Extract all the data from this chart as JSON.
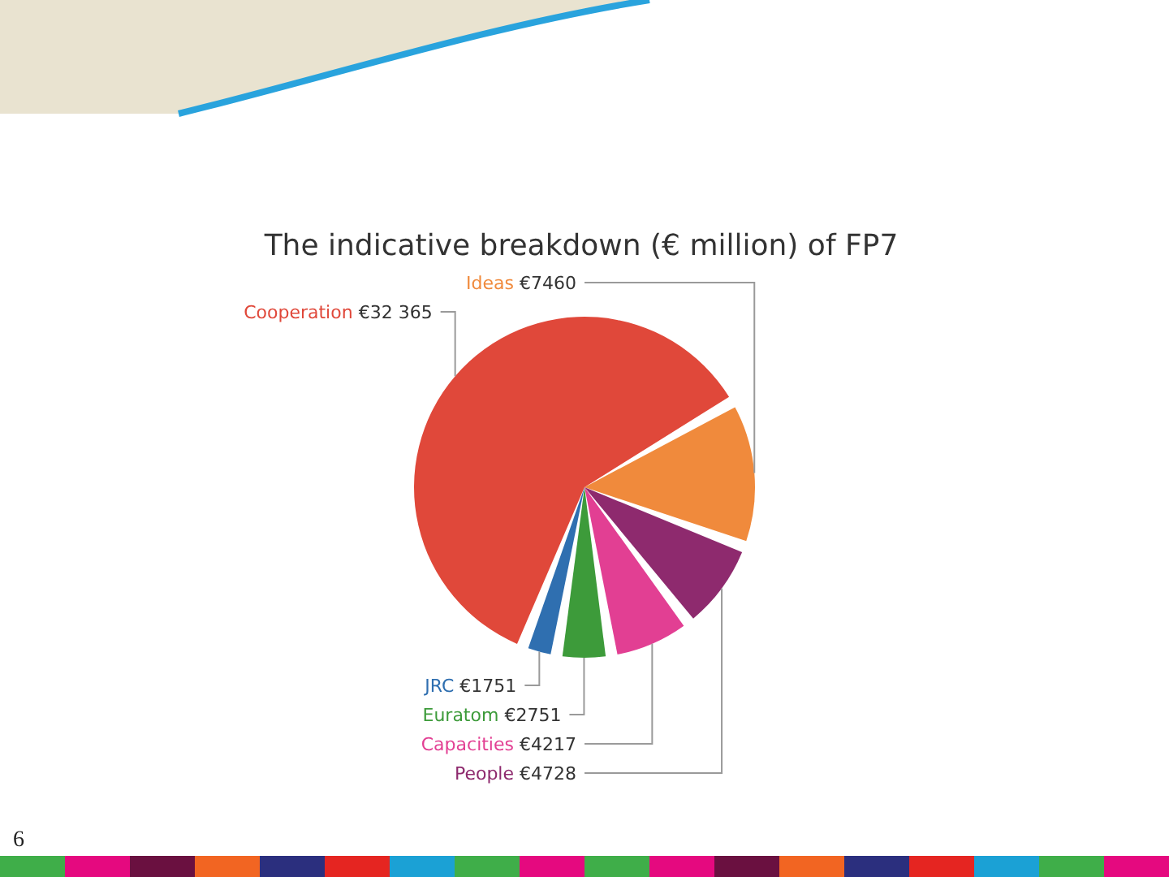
{
  "chart_data": {
    "type": "pie",
    "title": "The indicative breakdown (€ million) of FP7",
    "categories": [
      "Ideas",
      "People",
      "Capacities",
      "Euratom",
      "JRC",
      "Cooperation"
    ],
    "values": [
      7460,
      4728,
      4217,
      2751,
      1751,
      32365
    ],
    "value_labels": [
      "€7460",
      "€4728",
      "€4217",
      "€2751",
      "€1751",
      "€32 365"
    ],
    "colors": [
      "#f08a3c",
      "#8e2a6e",
      "#e23f93",
      "#3d9b3a",
      "#2f6fb0",
      "#e0483a"
    ],
    "annotations": [
      "6"
    ]
  }
}
